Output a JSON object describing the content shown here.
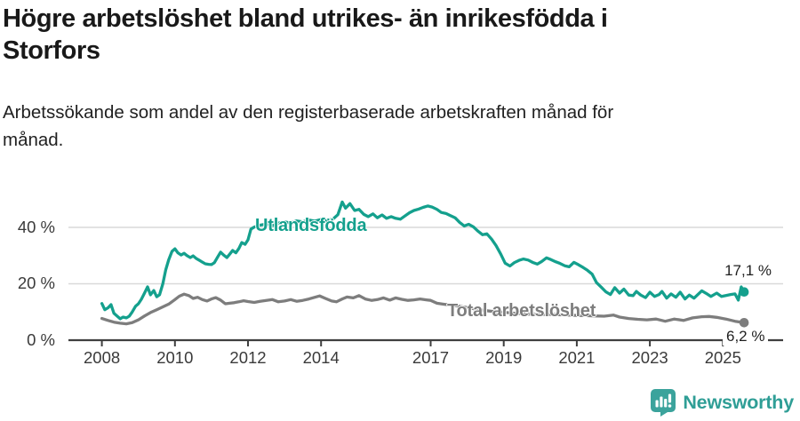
{
  "header": {
    "title": "Högre arbetslöshet bland utrikes- än inrikesfödda i\nStorfors",
    "subtitle": "Arbetssökande som andel av den registerbaserade arbetskraften månad för\nmånad."
  },
  "footer": {
    "brand": "Newsworthy",
    "brand_color": "#2f9e96",
    "icon_color": "#3ba39c"
  },
  "chart_data": {
    "type": "line",
    "unit": "%",
    "grid_on": true,
    "legend_position": "inline-labels",
    "grid_color": "#d9d9d9",
    "axis_color": "#3f3f3f",
    "ylim": [
      0,
      52
    ],
    "xlim": [
      2007.7,
      2026.6
    ],
    "y_ticks": [
      {
        "value": 0,
        "label": "0 %"
      },
      {
        "value": 20,
        "label": "20 %"
      },
      {
        "value": 40,
        "label": "40 %"
      }
    ],
    "x_ticks": [
      {
        "year": 2008,
        "label": "2008"
      },
      {
        "year": 2010,
        "label": "2010"
      },
      {
        "year": 2012,
        "label": "2012"
      },
      {
        "year": 2014,
        "label": "2014"
      },
      {
        "year": 2017,
        "label": "2017"
      },
      {
        "year": 2019,
        "label": "2019"
      },
      {
        "year": 2021,
        "label": "2021"
      },
      {
        "year": 2023,
        "label": "2023"
      },
      {
        "year": 2025,
        "label": "2025"
      }
    ],
    "series": [
      {
        "id": "utlandsfodda",
        "name": "Utlandsfödda",
        "color": "#14a08d",
        "end_value": 17.1,
        "end_label": "17,1 %",
        "points": [
          [
            2008.0,
            13.0
          ],
          [
            2008.08,
            10.8
          ],
          [
            2008.17,
            11.5
          ],
          [
            2008.25,
            12.6
          ],
          [
            2008.33,
            9.5
          ],
          [
            2008.42,
            8.5
          ],
          [
            2008.5,
            7.6
          ],
          [
            2008.58,
            8.2
          ],
          [
            2008.67,
            7.9
          ],
          [
            2008.75,
            8.5
          ],
          [
            2008.83,
            10.0
          ],
          [
            2008.92,
            12.0
          ],
          [
            2009.0,
            12.9
          ],
          [
            2009.08,
            14.5
          ],
          [
            2009.17,
            16.8
          ],
          [
            2009.25,
            18.9
          ],
          [
            2009.33,
            16.1
          ],
          [
            2009.42,
            17.6
          ],
          [
            2009.5,
            15.4
          ],
          [
            2009.58,
            16.1
          ],
          [
            2009.67,
            20.0
          ],
          [
            2009.75,
            25.0
          ],
          [
            2009.83,
            28.5
          ],
          [
            2009.92,
            31.5
          ],
          [
            2010.0,
            32.4
          ],
          [
            2010.08,
            31.0
          ],
          [
            2010.17,
            30.2
          ],
          [
            2010.25,
            30.8
          ],
          [
            2010.33,
            30.0
          ],
          [
            2010.42,
            29.3
          ],
          [
            2010.5,
            29.9
          ],
          [
            2010.58,
            29.0
          ],
          [
            2010.67,
            28.3
          ],
          [
            2010.75,
            27.7
          ],
          [
            2010.83,
            27.1
          ],
          [
            2010.92,
            26.9
          ],
          [
            2011.0,
            26.8
          ],
          [
            2011.08,
            27.5
          ],
          [
            2011.17,
            29.5
          ],
          [
            2011.25,
            31.2
          ],
          [
            2011.33,
            30.2
          ],
          [
            2011.42,
            29.3
          ],
          [
            2011.5,
            30.5
          ],
          [
            2011.58,
            31.8
          ],
          [
            2011.67,
            31.0
          ],
          [
            2011.75,
            32.5
          ],
          [
            2011.83,
            34.6
          ],
          [
            2011.92,
            34.0
          ],
          [
            2012.0,
            35.6
          ],
          [
            2012.08,
            39.4
          ],
          [
            2012.17,
            40.1
          ],
          [
            2012.33,
            40.8
          ],
          [
            2012.5,
            41.2
          ],
          [
            2012.67,
            40.6
          ],
          [
            2012.83,
            41.5
          ],
          [
            2013.0,
            42.0
          ],
          [
            2013.17,
            41.5
          ],
          [
            2013.33,
            42.3
          ],
          [
            2013.5,
            42.0
          ],
          [
            2013.67,
            42.6
          ],
          [
            2013.83,
            42.2
          ],
          [
            2014.0,
            42.8
          ],
          [
            2014.17,
            42.4
          ],
          [
            2014.33,
            43.0
          ],
          [
            2014.46,
            44.5
          ],
          [
            2014.58,
            49.0
          ],
          [
            2014.67,
            46.8
          ],
          [
            2014.79,
            48.4
          ],
          [
            2014.92,
            46.0
          ],
          [
            2015.04,
            46.4
          ],
          [
            2015.17,
            44.6
          ],
          [
            2015.29,
            43.8
          ],
          [
            2015.42,
            44.8
          ],
          [
            2015.54,
            43.4
          ],
          [
            2015.67,
            44.4
          ],
          [
            2015.79,
            43.2
          ],
          [
            2015.92,
            43.8
          ],
          [
            2016.04,
            43.2
          ],
          [
            2016.17,
            42.9
          ],
          [
            2016.29,
            44.0
          ],
          [
            2016.42,
            45.2
          ],
          [
            2016.54,
            46.0
          ],
          [
            2016.67,
            46.5
          ],
          [
            2016.79,
            47.1
          ],
          [
            2016.92,
            47.6
          ],
          [
            2017.04,
            47.2
          ],
          [
            2017.17,
            46.4
          ],
          [
            2017.29,
            45.3
          ],
          [
            2017.42,
            44.9
          ],
          [
            2017.54,
            44.2
          ],
          [
            2017.67,
            43.4
          ],
          [
            2017.79,
            41.8
          ],
          [
            2017.92,
            40.5
          ],
          [
            2018.04,
            41.1
          ],
          [
            2018.17,
            40.2
          ],
          [
            2018.29,
            38.7
          ],
          [
            2018.42,
            37.4
          ],
          [
            2018.54,
            37.7
          ],
          [
            2018.67,
            35.8
          ],
          [
            2018.79,
            33.5
          ],
          [
            2018.92,
            30.5
          ],
          [
            2019.04,
            27.3
          ],
          [
            2019.17,
            26.3
          ],
          [
            2019.29,
            27.5
          ],
          [
            2019.42,
            28.3
          ],
          [
            2019.54,
            28.8
          ],
          [
            2019.67,
            28.4
          ],
          [
            2019.79,
            27.6
          ],
          [
            2019.92,
            27.0
          ],
          [
            2020.04,
            27.9
          ],
          [
            2020.17,
            29.2
          ],
          [
            2020.29,
            28.6
          ],
          [
            2020.42,
            27.8
          ],
          [
            2020.54,
            27.2
          ],
          [
            2020.67,
            26.4
          ],
          [
            2020.79,
            26.0
          ],
          [
            2020.92,
            27.6
          ],
          [
            2021.04,
            26.8
          ],
          [
            2021.17,
            25.8
          ],
          [
            2021.29,
            24.8
          ],
          [
            2021.42,
            23.4
          ],
          [
            2021.54,
            20.4
          ],
          [
            2021.67,
            18.8
          ],
          [
            2021.79,
            17.2
          ],
          [
            2021.92,
            16.2
          ],
          [
            2022.04,
            18.6
          ],
          [
            2022.17,
            16.7
          ],
          [
            2022.29,
            18.1
          ],
          [
            2022.42,
            16.0
          ],
          [
            2022.54,
            15.8
          ],
          [
            2022.63,
            17.3
          ],
          [
            2022.75,
            16.0
          ],
          [
            2022.88,
            15.1
          ],
          [
            2023.0,
            17.0
          ],
          [
            2023.13,
            15.5
          ],
          [
            2023.25,
            16.2
          ],
          [
            2023.33,
            17.3
          ],
          [
            2023.46,
            14.9
          ],
          [
            2023.58,
            16.4
          ],
          [
            2023.71,
            15.2
          ],
          [
            2023.83,
            17.0
          ],
          [
            2023.96,
            14.6
          ],
          [
            2024.08,
            16.0
          ],
          [
            2024.21,
            14.9
          ],
          [
            2024.33,
            16.4
          ],
          [
            2024.42,
            17.5
          ],
          [
            2024.54,
            16.6
          ],
          [
            2024.67,
            15.5
          ],
          [
            2024.83,
            16.7
          ],
          [
            2024.96,
            15.5
          ],
          [
            2025.08,
            15.8
          ],
          [
            2025.21,
            16.2
          ],
          [
            2025.33,
            16.4
          ],
          [
            2025.42,
            14.2
          ],
          [
            2025.5,
            18.9
          ],
          [
            2025.58,
            17.1
          ]
        ]
      },
      {
        "id": "total",
        "name": "Total arbetslöshet",
        "color": "#7d7d7d",
        "end_value": 6.2,
        "end_label": "6,2 %",
        "points": [
          [
            2008.0,
            7.7
          ],
          [
            2008.17,
            7.0
          ],
          [
            2008.33,
            6.4
          ],
          [
            2008.5,
            6.0
          ],
          [
            2008.67,
            5.8
          ],
          [
            2008.83,
            6.2
          ],
          [
            2009.0,
            7.2
          ],
          [
            2009.17,
            8.6
          ],
          [
            2009.33,
            9.8
          ],
          [
            2009.5,
            10.8
          ],
          [
            2009.67,
            11.8
          ],
          [
            2009.83,
            12.8
          ],
          [
            2010.0,
            14.4
          ],
          [
            2010.12,
            15.6
          ],
          [
            2010.25,
            16.3
          ],
          [
            2010.38,
            15.8
          ],
          [
            2010.5,
            14.8
          ],
          [
            2010.62,
            15.2
          ],
          [
            2010.75,
            14.4
          ],
          [
            2010.88,
            13.9
          ],
          [
            2011.0,
            14.6
          ],
          [
            2011.12,
            15.1
          ],
          [
            2011.25,
            14.2
          ],
          [
            2011.38,
            12.9
          ],
          [
            2011.5,
            13.1
          ],
          [
            2011.62,
            13.3
          ],
          [
            2011.75,
            13.6
          ],
          [
            2011.88,
            14.0
          ],
          [
            2012.0,
            13.7
          ],
          [
            2012.17,
            13.4
          ],
          [
            2012.33,
            13.8
          ],
          [
            2012.5,
            14.1
          ],
          [
            2012.67,
            14.4
          ],
          [
            2012.83,
            13.6
          ],
          [
            2013.0,
            13.9
          ],
          [
            2013.17,
            14.4
          ],
          [
            2013.33,
            13.8
          ],
          [
            2013.5,
            14.1
          ],
          [
            2013.67,
            14.6
          ],
          [
            2013.83,
            15.2
          ],
          [
            2013.96,
            15.7
          ],
          [
            2014.12,
            14.8
          ],
          [
            2014.29,
            13.9
          ],
          [
            2014.42,
            13.6
          ],
          [
            2014.58,
            14.6
          ],
          [
            2014.71,
            15.3
          ],
          [
            2014.88,
            15.0
          ],
          [
            2015.04,
            15.8
          ],
          [
            2015.21,
            14.6
          ],
          [
            2015.38,
            14.1
          ],
          [
            2015.54,
            14.4
          ],
          [
            2015.71,
            15.0
          ],
          [
            2015.88,
            14.2
          ],
          [
            2016.04,
            15.0
          ],
          [
            2016.21,
            14.5
          ],
          [
            2016.38,
            14.1
          ],
          [
            2016.54,
            14.3
          ],
          [
            2016.71,
            14.6
          ],
          [
            2016.88,
            14.3
          ],
          [
            2017.0,
            14.1
          ],
          [
            2017.17,
            13.1
          ],
          [
            2017.33,
            12.8
          ],
          [
            2017.5,
            12.5
          ],
          [
            2017.75,
            12.1
          ],
          [
            2018.0,
            11.6
          ],
          [
            2018.25,
            11.0
          ],
          [
            2018.5,
            10.5
          ],
          [
            2018.75,
            10.1
          ],
          [
            2019.0,
            9.9
          ],
          [
            2019.25,
            9.6
          ],
          [
            2019.5,
            9.4
          ],
          [
            2019.75,
            9.2
          ],
          [
            2020.0,
            9.1
          ],
          [
            2020.25,
            9.2
          ],
          [
            2020.5,
            9.0
          ],
          [
            2020.75,
            8.9
          ],
          [
            2021.0,
            8.8
          ],
          [
            2021.25,
            8.7
          ],
          [
            2021.5,
            8.6
          ],
          [
            2021.75,
            8.5
          ],
          [
            2022.0,
            8.9
          ],
          [
            2022.17,
            8.2
          ],
          [
            2022.42,
            7.7
          ],
          [
            2022.67,
            7.4
          ],
          [
            2022.92,
            7.2
          ],
          [
            2023.17,
            7.5
          ],
          [
            2023.42,
            6.7
          ],
          [
            2023.67,
            7.5
          ],
          [
            2023.92,
            7.0
          ],
          [
            2024.17,
            7.9
          ],
          [
            2024.42,
            8.3
          ],
          [
            2024.62,
            8.4
          ],
          [
            2024.83,
            8.1
          ],
          [
            2025.08,
            7.5
          ],
          [
            2025.33,
            6.7
          ],
          [
            2025.58,
            6.2
          ]
        ]
      }
    ]
  }
}
